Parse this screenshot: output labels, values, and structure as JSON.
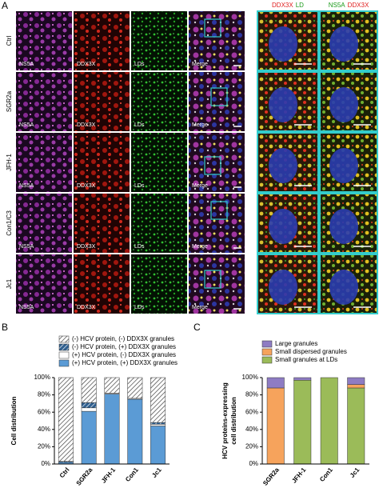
{
  "panel_a": {
    "label": "A",
    "rows": [
      "Ctrl",
      "SGR2a",
      "JFH-1",
      "Con1/C3",
      "Jc1"
    ],
    "channels": [
      "NS5A",
      "DDX3X",
      "LDs",
      "Merge"
    ],
    "zoom_headers": [
      [
        {
          "text": "DDX3X",
          "color": "#e02020"
        },
        {
          "text": "LD",
          "color": "#1a9a1a"
        }
      ],
      [
        {
          "text": "NS5A",
          "color": "#1a9a1a"
        },
        {
          "text": "DDX3X",
          "color": "#e02020"
        }
      ]
    ]
  },
  "chart_data": [
    {
      "type": "bar",
      "stacked": true,
      "label": "B",
      "ylabel": [
        "Cell distribution"
      ],
      "categories": [
        "Ctrl",
        "SGR2a",
        "JFH-1",
        "Con1",
        "Jc1"
      ],
      "series": [
        {
          "name": "(-) HCV protein, (-) DDX3X granules",
          "color": "#ffffff",
          "pattern": "hatch",
          "values": [
            97,
            29,
            18,
            24,
            52
          ]
        },
        {
          "name": "(-) HCV protein, (+) DDX3X granules",
          "color": "#2f5f8f",
          "pattern": "hatch",
          "values": [
            1,
            6,
            0,
            0,
            2
          ]
        },
        {
          "name": "(+) HCV protein, (-) DDX3X granules",
          "color": "#ffffff",
          "values": [
            0,
            4,
            1,
            1,
            2
          ]
        },
        {
          "name": "(+) HCV protein, (+) DDX3X granules",
          "color": "#5b9bd5",
          "values": [
            2,
            61,
            81,
            75,
            44
          ]
        }
      ],
      "ylim": [
        0,
        100
      ],
      "yticks": [
        {
          "value": 0,
          "label": "0%"
        },
        {
          "value": 20,
          "label": "20%"
        },
        {
          "value": 40,
          "label": "40%"
        },
        {
          "value": 60,
          "label": "60%"
        },
        {
          "value": 80,
          "label": "80%"
        },
        {
          "value": 100,
          "label": "100%"
        }
      ]
    },
    {
      "type": "bar",
      "stacked": true,
      "label": "C",
      "ylabel": [
        "HCV proteins-expressing",
        "cell distribution"
      ],
      "categories": [
        "SGR2a",
        "JFH-1",
        "Con1",
        "Jc1"
      ],
      "series": [
        {
          "name": "Large granules",
          "color": "#8e7cc3",
          "values": [
            12,
            3,
            0,
            8
          ]
        },
        {
          "name": "Small dispersed granules",
          "color": "#f6a35c",
          "values": [
            88,
            0,
            0,
            4
          ]
        },
        {
          "name": "Small granules at LDs",
          "color": "#9bbb59",
          "values": [
            0,
            97,
            100,
            88
          ]
        }
      ],
      "ylim": [
        0,
        100
      ],
      "yticks": [
        {
          "value": 0,
          "label": "0%"
        },
        {
          "value": 20,
          "label": "20%"
        },
        {
          "value": 40,
          "label": "40%"
        },
        {
          "value": 60,
          "label": "60%"
        },
        {
          "value": 80,
          "label": "80%"
        },
        {
          "value": 100,
          "label": "100%"
        }
      ]
    }
  ]
}
